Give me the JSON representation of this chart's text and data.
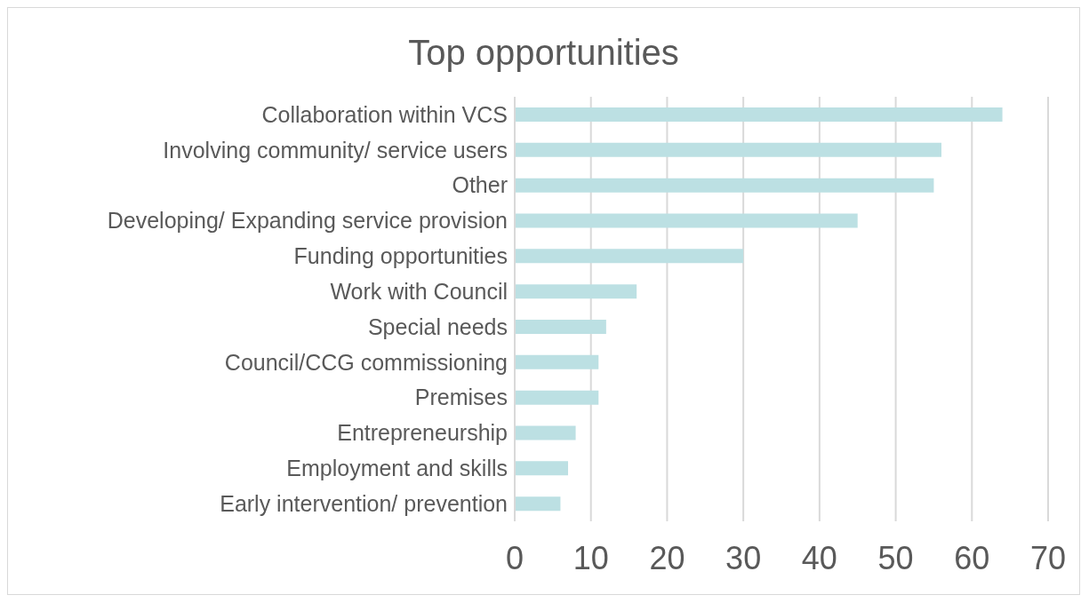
{
  "chart_data": {
    "type": "bar",
    "orientation": "horizontal",
    "title": "Top opportunities",
    "categories": [
      "Collaboration within VCS",
      "Involving community/ service users ",
      "Other",
      "Developing/ Expanding service provision ",
      "Funding opportunities",
      "Work with Council",
      "Special needs",
      "Council/CCG commissioning",
      "Premises",
      "Entrepreneurship",
      "Employment and skills",
      "Early intervention/ prevention"
    ],
    "values": [
      64,
      56,
      55,
      45,
      30,
      16,
      12,
      11,
      11,
      8,
      7,
      6
    ],
    "color": "#bce0e3",
    "xlim": [
      0,
      70
    ],
    "xticks": [
      0,
      10,
      20,
      30,
      40,
      50,
      60,
      70
    ],
    "grid": "x",
    "legend": false
  }
}
